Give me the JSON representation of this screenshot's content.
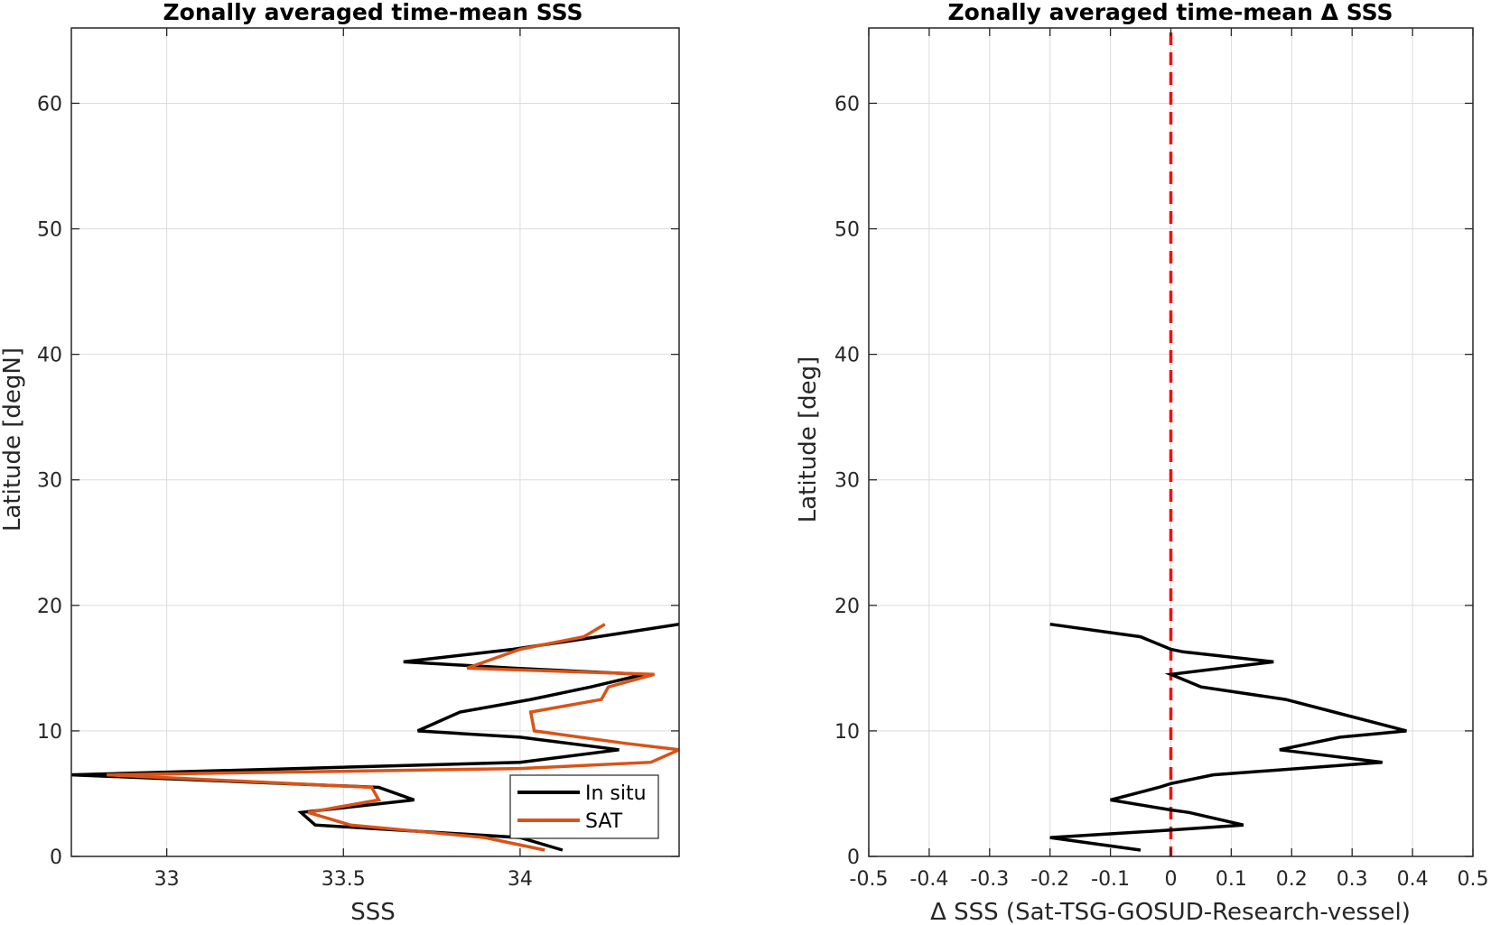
{
  "chart_data": [
    {
      "type": "line",
      "title": "Zonally averaged time-mean SSS",
      "xlabel": "SSS",
      "ylabel": "Latitude [degN]",
      "xlim": [
        32.73,
        34.45
      ],
      "ylim": [
        0,
        66
      ],
      "xticks": [
        33,
        33.5,
        34
      ],
      "xtick_labels": [
        "33",
        "33.5",
        "34"
      ],
      "yticks": [
        0,
        10,
        20,
        30,
        40,
        50,
        60
      ],
      "ytick_labels": [
        "0",
        "10",
        "20",
        "30",
        "40",
        "50",
        "60"
      ],
      "grid": true,
      "legend": {
        "position": "bottom-right",
        "entries": [
          "In situ",
          "SAT"
        ]
      },
      "series": [
        {
          "name": "In situ",
          "color": "#000000",
          "points": [
            [
              34.45,
              18.5
            ],
            [
              34.22,
              17.5
            ],
            [
              33.98,
              16.5
            ],
            [
              33.67,
              15.5
            ],
            [
              33.98,
              15.0
            ],
            [
              34.35,
              14.5
            ],
            [
              34.2,
              13.5
            ],
            [
              34.03,
              12.5
            ],
            [
              33.83,
              11.5
            ],
            [
              33.71,
              10.0
            ],
            [
              34.0,
              9.5
            ],
            [
              34.28,
              8.5
            ],
            [
              34.0,
              7.5
            ],
            [
              32.73,
              6.5
            ],
            [
              33.6,
              5.5
            ],
            [
              33.7,
              4.5
            ],
            [
              33.38,
              3.5
            ],
            [
              33.42,
              2.5
            ],
            [
              34.0,
              1.5
            ],
            [
              34.12,
              0.5
            ]
          ]
        },
        {
          "name": "SAT",
          "color": "#d95319",
          "points": [
            [
              34.24,
              18.5
            ],
            [
              34.18,
              17.5
            ],
            [
              34.0,
              16.5
            ],
            [
              33.85,
              15.0
            ],
            [
              34.38,
              14.5
            ],
            [
              34.25,
              13.5
            ],
            [
              34.23,
              12.5
            ],
            [
              34.03,
              11.5
            ],
            [
              34.04,
              10.0
            ],
            [
              34.3,
              9.0
            ],
            [
              34.45,
              8.5
            ],
            [
              34.37,
              7.5
            ],
            [
              34.0,
              7.0
            ],
            [
              32.83,
              6.5
            ],
            [
              33.58,
              5.5
            ],
            [
              33.6,
              4.5
            ],
            [
              33.4,
              3.5
            ],
            [
              33.52,
              2.5
            ],
            [
              33.9,
              1.5
            ],
            [
              34.07,
              0.5
            ]
          ]
        }
      ]
    },
    {
      "type": "line",
      "title": "Zonally averaged time-mean Δ SSS",
      "xlabel": "Δ SSS (Sat-TSG-GOSUD-Research-vessel)",
      "ylabel": "Latitude [deg]",
      "xlim": [
        -0.5,
        0.5
      ],
      "ylim": [
        0,
        66
      ],
      "xticks": [
        -0.5,
        -0.4,
        -0.3,
        -0.2,
        -0.1,
        0,
        0.1,
        0.2,
        0.3,
        0.4,
        0.5
      ],
      "xtick_labels": [
        "-0.5",
        "-0.4",
        "-0.3",
        "-0.2",
        "-0.1",
        "0",
        "0.1",
        "0.2",
        "0.3",
        "0.4",
        "0.5"
      ],
      "yticks": [
        0,
        10,
        20,
        30,
        40,
        50,
        60
      ],
      "ytick_labels": [
        "0",
        "10",
        "20",
        "30",
        "40",
        "50",
        "60"
      ],
      "grid": true,
      "reference_line": {
        "x": 0,
        "color": "#ff0000",
        "style": "dashed"
      },
      "series": [
        {
          "color": "#000000",
          "points": [
            [
              -0.2,
              18.5
            ],
            [
              -0.05,
              17.5
            ],
            [
              0.0,
              16.5
            ],
            [
              0.02,
              16.3
            ],
            [
              0.17,
              15.5
            ],
            [
              0.0,
              14.5
            ],
            [
              0.05,
              13.5
            ],
            [
              0.19,
              12.5
            ],
            [
              0.27,
              11.5
            ],
            [
              0.39,
              10.0
            ],
            [
              0.28,
              9.5
            ],
            [
              0.18,
              8.5
            ],
            [
              0.35,
              7.5
            ],
            [
              0.07,
              6.5
            ],
            [
              0.0,
              5.8
            ],
            [
              -0.02,
              5.5
            ],
            [
              -0.1,
              4.5
            ],
            [
              0.0,
              3.7
            ],
            [
              0.03,
              3.5
            ],
            [
              0.12,
              2.5
            ],
            [
              0.0,
              2.1
            ],
            [
              -0.2,
              1.5
            ],
            [
              -0.05,
              0.5
            ]
          ]
        }
      ]
    }
  ]
}
